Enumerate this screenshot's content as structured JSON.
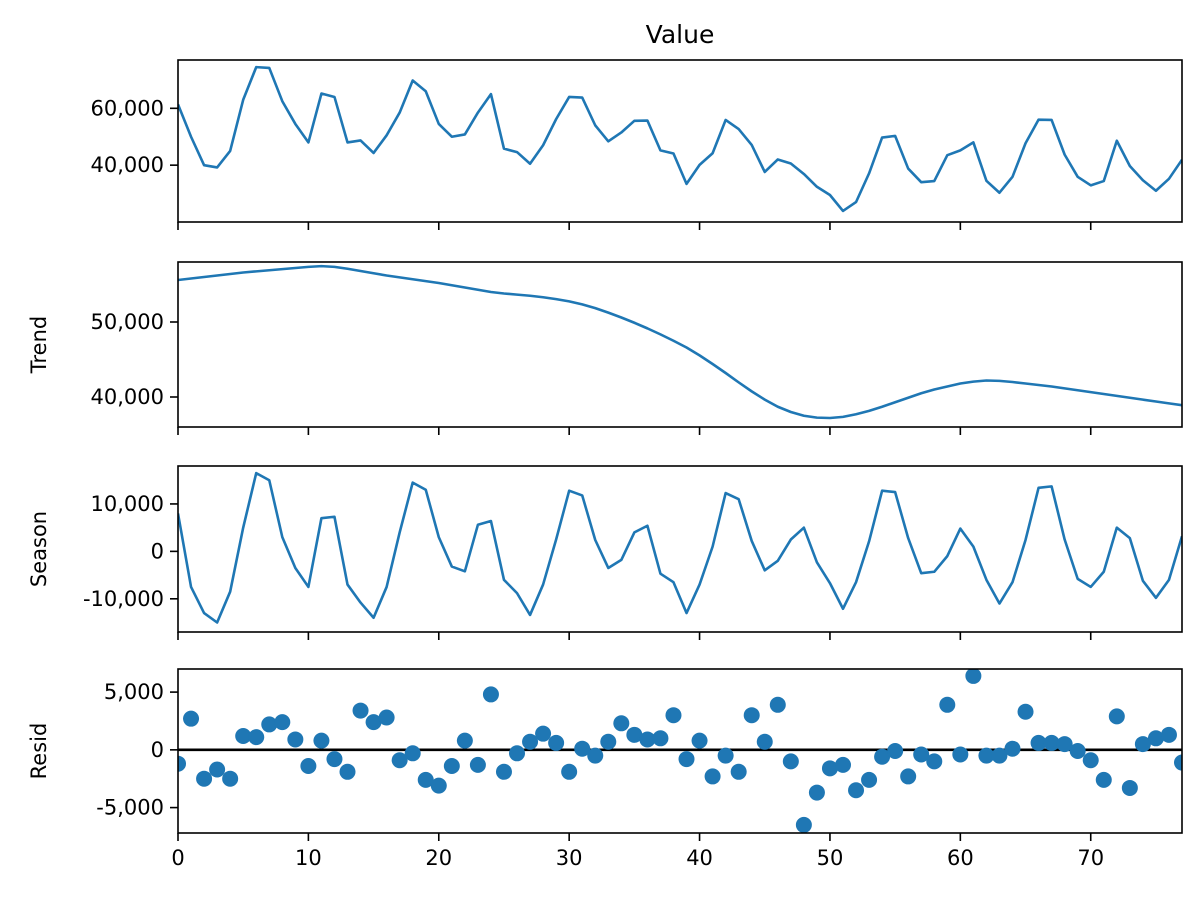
{
  "chart_data": [
    {
      "type": "line",
      "id": "observed",
      "title": "Value",
      "ylabel": "",
      "x": [
        0,
        1,
        2,
        3,
        4,
        5,
        6,
        7,
        8,
        9,
        10,
        11,
        12,
        13,
        14,
        15,
        16,
        17,
        18,
        19,
        20,
        21,
        22,
        23,
        24,
        25,
        26,
        27,
        28,
        29,
        30,
        31,
        32,
        33,
        34,
        35,
        36,
        37,
        38,
        39,
        40,
        41,
        42,
        43,
        44,
        45,
        46,
        47,
        48,
        49,
        50,
        51,
        52,
        53,
        54,
        55,
        56,
        57,
        58,
        59,
        60,
        61,
        62,
        63,
        64,
        65,
        66,
        67,
        68,
        69,
        70,
        71,
        72,
        73,
        74,
        75,
        76,
        77
      ],
      "values": [
        61400,
        50000,
        40000,
        39200,
        45000,
        63000,
        74500,
        74200,
        62500,
        54500,
        48000,
        65200,
        64000,
        48000,
        48700,
        44300,
        50500,
        58500,
        69800,
        66000,
        54500,
        50000,
        50800,
        58500,
        65000,
        45800,
        44600,
        40500,
        47000,
        56200,
        64000,
        63800,
        54000,
        48400,
        51500,
        55600,
        55700,
        45200,
        44100,
        33400,
        40100,
        44200,
        55900,
        52700,
        47100,
        37600,
        42000,
        40600,
        36900,
        32400,
        29500,
        23900,
        27000,
        37100,
        49700,
        50300,
        38800,
        34000,
        34400,
        43500,
        45200,
        48000,
        34500,
        30300,
        35900,
        47700,
        56000,
        55900,
        43700,
        35900,
        32900,
        34400,
        48600,
        39700,
        34700,
        31000,
        35200,
        41900
      ],
      "ylim": [
        20000,
        77000
      ],
      "yticks": [
        {
          "value": 40000,
          "label": "40,000"
        },
        {
          "value": 60000,
          "label": "60,000"
        }
      ],
      "grid": false
    },
    {
      "type": "line",
      "id": "trend",
      "title": "",
      "ylabel": "Trend",
      "x": [
        0,
        1,
        2,
        3,
        4,
        5,
        6,
        7,
        8,
        9,
        10,
        11,
        12,
        13,
        14,
        15,
        16,
        17,
        18,
        19,
        20,
        21,
        22,
        23,
        24,
        25,
        26,
        27,
        28,
        29,
        30,
        31,
        32,
        33,
        34,
        35,
        36,
        37,
        38,
        39,
        40,
        41,
        42,
        43,
        44,
        45,
        46,
        47,
        48,
        49,
        50,
        51,
        52,
        53,
        54,
        55,
        56,
        57,
        58,
        59,
        60,
        61,
        62,
        63,
        64,
        65,
        66,
        67,
        68,
        69,
        70,
        71,
        72,
        73,
        74,
        75,
        76,
        77
      ],
      "values": [
        55600,
        55800,
        56000,
        56200,
        56400,
        56600,
        56750,
        56900,
        57050,
        57200,
        57350,
        57450,
        57350,
        57100,
        56800,
        56500,
        56200,
        55950,
        55700,
        55450,
        55200,
        54900,
        54600,
        54300,
        54000,
        53800,
        53650,
        53500,
        53300,
        53050,
        52750,
        52350,
        51850,
        51250,
        50600,
        49900,
        49150,
        48350,
        47500,
        46600,
        45550,
        44400,
        43200,
        41950,
        40750,
        39650,
        38700,
        38000,
        37500,
        37250,
        37200,
        37350,
        37700,
        38150,
        38700,
        39300,
        39900,
        40500,
        41000,
        41400,
        41800,
        42050,
        42200,
        42150,
        42000,
        41800,
        41600,
        41400,
        41150,
        40900,
        40650,
        40400,
        40150,
        39900,
        39650,
        39400,
        39150,
        38900
      ],
      "ylim": [
        36000,
        58000
      ],
      "yticks": [
        {
          "value": 40000,
          "label": "40,000"
        },
        {
          "value": 50000,
          "label": "50,000"
        }
      ],
      "grid": false
    },
    {
      "type": "line",
      "id": "season",
      "title": "",
      "ylabel": "Season",
      "x": [
        0,
        1,
        2,
        3,
        4,
        5,
        6,
        7,
        8,
        9,
        10,
        11,
        12,
        13,
        14,
        15,
        16,
        17,
        18,
        19,
        20,
        21,
        22,
        23,
        24,
        25,
        26,
        27,
        28,
        29,
        30,
        31,
        32,
        33,
        34,
        35,
        36,
        37,
        38,
        39,
        40,
        41,
        42,
        43,
        44,
        45,
        46,
        47,
        48,
        49,
        50,
        51,
        52,
        53,
        54,
        55,
        56,
        57,
        58,
        59,
        60,
        61,
        62,
        63,
        64,
        65,
        66,
        67,
        68,
        69,
        70,
        71,
        72,
        73,
        74,
        75,
        76,
        77
      ],
      "values": [
        8000,
        -7500,
        -13000,
        -15000,
        -8500,
        5000,
        16500,
        15000,
        3000,
        -3500,
        -7500,
        7000,
        7300,
        -7000,
        -10800,
        -14000,
        -7500,
        4000,
        14500,
        13000,
        3000,
        -3200,
        -4200,
        5600,
        6400,
        -6000,
        -8800,
        -13400,
        -7000,
        2500,
        12800,
        11800,
        2400,
        -3500,
        -1800,
        4000,
        5400,
        -4700,
        -6500,
        -13000,
        -7000,
        1000,
        12300,
        11000,
        2200,
        -4000,
        -2000,
        2500,
        5000,
        -2300,
        -6700,
        -12100,
        -6500,
        2100,
        12800,
        12500,
        2800,
        -4600,
        -4300,
        -1000,
        4800,
        1000,
        -6000,
        -11000,
        -6500,
        2400,
        13400,
        13700,
        2500,
        -5800,
        -7500,
        -4300,
        5000,
        2800,
        -6200,
        -9800,
        -6000,
        3200
      ],
      "ylim": [
        -17000,
        18000
      ],
      "yticks": [
        {
          "value": -10000,
          "label": "-10,000"
        },
        {
          "value": 0,
          "label": "0"
        },
        {
          "value": 10000,
          "label": "10,000"
        }
      ],
      "grid": false
    },
    {
      "type": "scatter",
      "id": "resid",
      "title": "",
      "ylabel": "Resid",
      "xlabel": "",
      "x": [
        0,
        1,
        2,
        3,
        4,
        5,
        6,
        7,
        8,
        9,
        10,
        11,
        12,
        13,
        14,
        15,
        16,
        17,
        18,
        19,
        20,
        21,
        22,
        23,
        24,
        25,
        26,
        27,
        28,
        29,
        30,
        31,
        32,
        33,
        34,
        35,
        36,
        37,
        38,
        39,
        40,
        41,
        42,
        43,
        44,
        45,
        46,
        47,
        48,
        49,
        50,
        51,
        52,
        53,
        54,
        55,
        56,
        57,
        58,
        59,
        60,
        61,
        62,
        63,
        64,
        65,
        66,
        67,
        68,
        69,
        70,
        71,
        72,
        73,
        74,
        75,
        76,
        77
      ],
      "values": [
        -1200,
        2700,
        -2500,
        -1700,
        -2500,
        1200,
        1100,
        2200,
        2400,
        900,
        -1400,
        800,
        -800,
        -1900,
        3400,
        2400,
        2800,
        -900,
        -300,
        -2600,
        -3100,
        -1400,
        800,
        -1300,
        4800,
        -1900,
        -300,
        700,
        1400,
        600,
        -1900,
        100,
        -500,
        700,
        2300,
        1300,
        900,
        1000,
        3000,
        -800,
        800,
        -2300,
        -500,
        -1900,
        3000,
        700,
        3900,
        -1000,
        -6500,
        -3700,
        -1600,
        -1300,
        -3500,
        -2600,
        -600,
        -100,
        -2300,
        -400,
        -1000,
        3900,
        -400,
        6400,
        -500,
        -500,
        100,
        3300,
        600,
        600,
        500,
        -100,
        -900,
        -2600,
        2900,
        -3300,
        500,
        1000,
        1300,
        -1100
      ],
      "baseline": 0,
      "ylim": [
        -7200,
        7000
      ],
      "yticks": [
        {
          "value": -5000,
          "label": "-5,000"
        },
        {
          "value": 0,
          "label": "0"
        },
        {
          "value": 5000,
          "label": "5,000"
        }
      ],
      "xticks": [
        {
          "value": 0,
          "label": "0"
        },
        {
          "value": 10,
          "label": "10"
        },
        {
          "value": 20,
          "label": "20"
        },
        {
          "value": 30,
          "label": "30"
        },
        {
          "value": 40,
          "label": "40"
        },
        {
          "value": 50,
          "label": "50"
        },
        {
          "value": 60,
          "label": "60"
        },
        {
          "value": 70,
          "label": "70"
        }
      ],
      "grid": false
    }
  ],
  "xlim": [
    0,
    77
  ],
  "colors": {
    "series": "#1f77b4",
    "axis": "#000000",
    "baseline": "#000000"
  }
}
